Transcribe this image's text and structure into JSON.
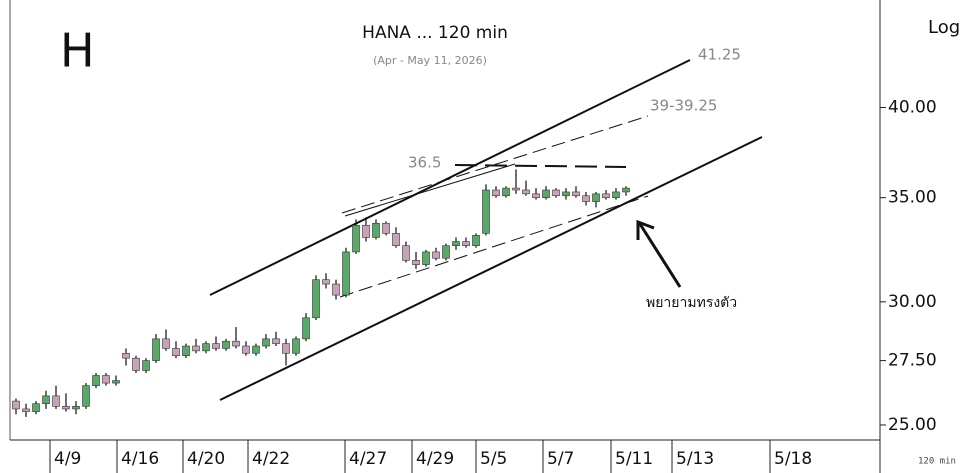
{
  "chart_data": {
    "type": "candlestick",
    "letter": "H",
    "title": "HANA ... 120 min",
    "subtitle": "(Apr - May 11, 2026)",
    "scale_label": "Log",
    "corner_label": "120 min",
    "log_scale": true,
    "up_color": "#5aa86a",
    "down_color": "#c8a2b8",
    "x": [
      0,
      1,
      2,
      3,
      4,
      5,
      6,
      7,
      8,
      9,
      10,
      11,
      12,
      13,
      14,
      15,
      16,
      17,
      18,
      19,
      20,
      21,
      22,
      23,
      24,
      25,
      26,
      27,
      28,
      29,
      30,
      31,
      32,
      33,
      34,
      35,
      36,
      37,
      38,
      39,
      40,
      41,
      42,
      43,
      44,
      45,
      46,
      47,
      48,
      49,
      50,
      51,
      52,
      53,
      54,
      55,
      56,
      57,
      58,
      59,
      60,
      61
    ],
    "xlim": [
      -1.6,
      85.4
    ],
    "xticks": [
      {
        "value": 3.4,
        "label": "4/9"
      },
      {
        "value": 10.1,
        "label": "4/16"
      },
      {
        "value": 16.7,
        "label": "4/20"
      },
      {
        "value": 23.2,
        "label": "4/22"
      },
      {
        "value": 32.9,
        "label": "4/27"
      },
      {
        "value": 39.6,
        "label": "4/29"
      },
      {
        "value": 46.0,
        "label": "5/5"
      },
      {
        "value": 52.7,
        "label": "5/7"
      },
      {
        "value": 59.5,
        "label": "5/11"
      },
      {
        "value": 65.6,
        "label": "5/13"
      },
      {
        "value": 75.4,
        "label": "5/18"
      }
    ],
    "ylim": [
      24.45,
      46.9
    ],
    "yticks": [
      {
        "value": 25,
        "label": "25.00"
      },
      {
        "value": 27.5,
        "label": "27.50"
      },
      {
        "value": 30,
        "label": "30.00"
      },
      {
        "value": 35,
        "label": "35.00"
      },
      {
        "value": 40,
        "label": "40.00"
      }
    ],
    "open": [
      25.9,
      25.6,
      25.5,
      25.8,
      26.1,
      25.7,
      25.6,
      25.7,
      26.5,
      26.9,
      26.6,
      27.8,
      27.6,
      27.1,
      27.5,
      28.4,
      28.0,
      27.7,
      28.1,
      27.9,
      28.2,
      28.0,
      28.3,
      28.1,
      27.8,
      28.1,
      28.4,
      28.2,
      27.8,
      28.4,
      29.3,
      31.0,
      30.8,
      30.3,
      32.3,
      33.6,
      33.0,
      33.7,
      33.2,
      32.6,
      31.9,
      31.7,
      32.3,
      32.0,
      32.6,
      32.8,
      32.6,
      33.2,
      35.4,
      35.1,
      35.5,
      35.4,
      35.2,
      35.0,
      35.4,
      35.1,
      35.3,
      35.1,
      34.8,
      35.2,
      35.0,
      35.3
    ],
    "high": [
      26.0,
      25.8,
      25.9,
      26.3,
      26.5,
      26.2,
      25.9,
      26.6,
      27.0,
      27.0,
      26.9,
      28.0,
      27.7,
      27.6,
      28.6,
      28.8,
      28.3,
      28.2,
      28.4,
      28.3,
      28.5,
      28.4,
      28.9,
      28.3,
      28.2,
      28.6,
      28.7,
      28.4,
      28.5,
      29.5,
      31.2,
      31.3,
      31.0,
      32.5,
      33.9,
      34.0,
      33.9,
      33.8,
      33.5,
      32.8,
      32.3,
      32.4,
      32.5,
      32.7,
      33.0,
      33.0,
      33.2,
      35.7,
      35.6,
      35.6,
      36.5,
      35.9,
      35.5,
      35.6,
      35.5,
      35.5,
      35.6,
      35.3,
      35.3,
      35.4,
      35.5,
      35.6
    ],
    "low": [
      25.4,
      25.3,
      25.4,
      25.6,
      25.6,
      25.5,
      25.4,
      25.6,
      26.4,
      26.5,
      26.5,
      27.3,
      27.0,
      27.0,
      27.4,
      27.9,
      27.6,
      27.6,
      27.8,
      27.8,
      27.9,
      27.9,
      28.0,
      27.7,
      27.7,
      28.0,
      28.1,
      27.3,
      27.7,
      28.3,
      29.2,
      30.6,
      30.1,
      30.2,
      32.2,
      32.8,
      32.9,
      33.1,
      32.5,
      31.8,
      31.5,
      31.6,
      31.9,
      31.9,
      32.4,
      32.5,
      32.5,
      33.1,
      35.0,
      35.0,
      35.2,
      35.1,
      34.9,
      34.9,
      35.0,
      34.9,
      35.0,
      34.6,
      34.5,
      34.9,
      34.9,
      35.1
    ],
    "close": [
      25.6,
      25.5,
      25.8,
      26.1,
      25.7,
      25.6,
      25.7,
      26.5,
      26.9,
      26.6,
      26.7,
      27.6,
      27.1,
      27.5,
      28.4,
      28.0,
      27.7,
      28.1,
      27.9,
      28.2,
      28.0,
      28.3,
      28.1,
      27.8,
      28.1,
      28.4,
      28.2,
      27.8,
      28.4,
      29.3,
      31.0,
      30.8,
      30.3,
      32.3,
      33.6,
      33.0,
      33.7,
      33.2,
      32.6,
      31.9,
      31.7,
      32.3,
      32.0,
      32.6,
      32.8,
      32.6,
      33.1,
      35.4,
      35.1,
      35.5,
      35.4,
      35.2,
      35.0,
      35.4,
      35.1,
      35.3,
      35.1,
      34.8,
      35.2,
      35.0,
      35.3,
      35.5
    ],
    "annotations": [
      "41.25",
      "39-39.25",
      "36.5",
      "พยายามทรงตัว"
    ]
  }
}
